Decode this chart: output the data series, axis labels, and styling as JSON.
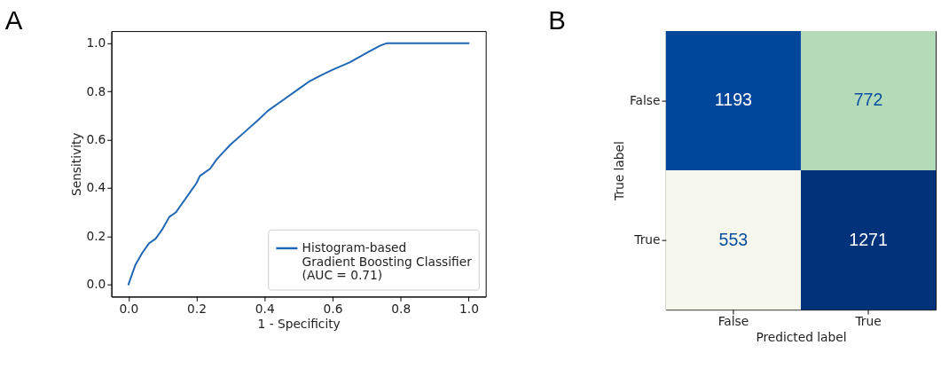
{
  "chart_data": [
    {
      "type": "line",
      "title": "A",
      "xlabel": "1 - Specificity",
      "ylabel": "Sensitivity",
      "x": [
        0,
        0.01,
        0.02,
        0.04,
        0.06,
        0.08,
        0.1,
        0.12,
        0.14,
        0.16,
        0.18,
        0.2,
        0.21,
        0.24,
        0.26,
        0.3,
        0.34,
        0.38,
        0.41,
        0.45,
        0.5,
        0.53,
        0.57,
        0.6,
        0.65,
        0.7,
        0.74,
        0.76,
        0.8,
        1.0
      ],
      "series": [
        {
          "name": "Histogram-based\nGradient Boosting Classifier\n(AUC = 0.71)",
          "color": "#1f66b4",
          "values": [
            0,
            0.04,
            0.08,
            0.13,
            0.17,
            0.19,
            0.23,
            0.28,
            0.3,
            0.34,
            0.38,
            0.42,
            0.45,
            0.48,
            0.52,
            0.58,
            0.63,
            0.68,
            0.72,
            0.76,
            0.81,
            0.84,
            0.87,
            0.89,
            0.92,
            0.96,
            0.99,
            1.0,
            1.0,
            1.0
          ]
        }
      ],
      "xlim": [
        -0.05,
        1.05
      ],
      "ylim": [
        -0.05,
        1.05
      ],
      "xticks": [
        {
          "value": 0,
          "label": "0.0"
        },
        0.2,
        0.4,
        0.6,
        0.8,
        {
          "value": 1,
          "label": "1.0"
        }
      ],
      "yticks": [
        {
          "value": 0,
          "label": "0.0"
        },
        0.2,
        0.4,
        0.6,
        0.8,
        {
          "value": 1,
          "label": "1.0"
        }
      ],
      "legend": "bottom right",
      "grid": false,
      "marker": "none",
      "line_style": "solid"
    },
    {
      "type": "heatmap",
      "title": "B",
      "xlabel": "Predicted label",
      "ylabel": "True label",
      "categories": [
        "False",
        "True"
      ],
      "y_categories": [
        "False",
        "True"
      ],
      "cells": [
        [
          1193,
          772
        ],
        [
          553,
          1271
        ]
      ],
      "colors": [
        "#00479b",
        "#b4dab8",
        "#f5f7ec",
        "#023279"
      ],
      "data_labels": true
    }
  ]
}
